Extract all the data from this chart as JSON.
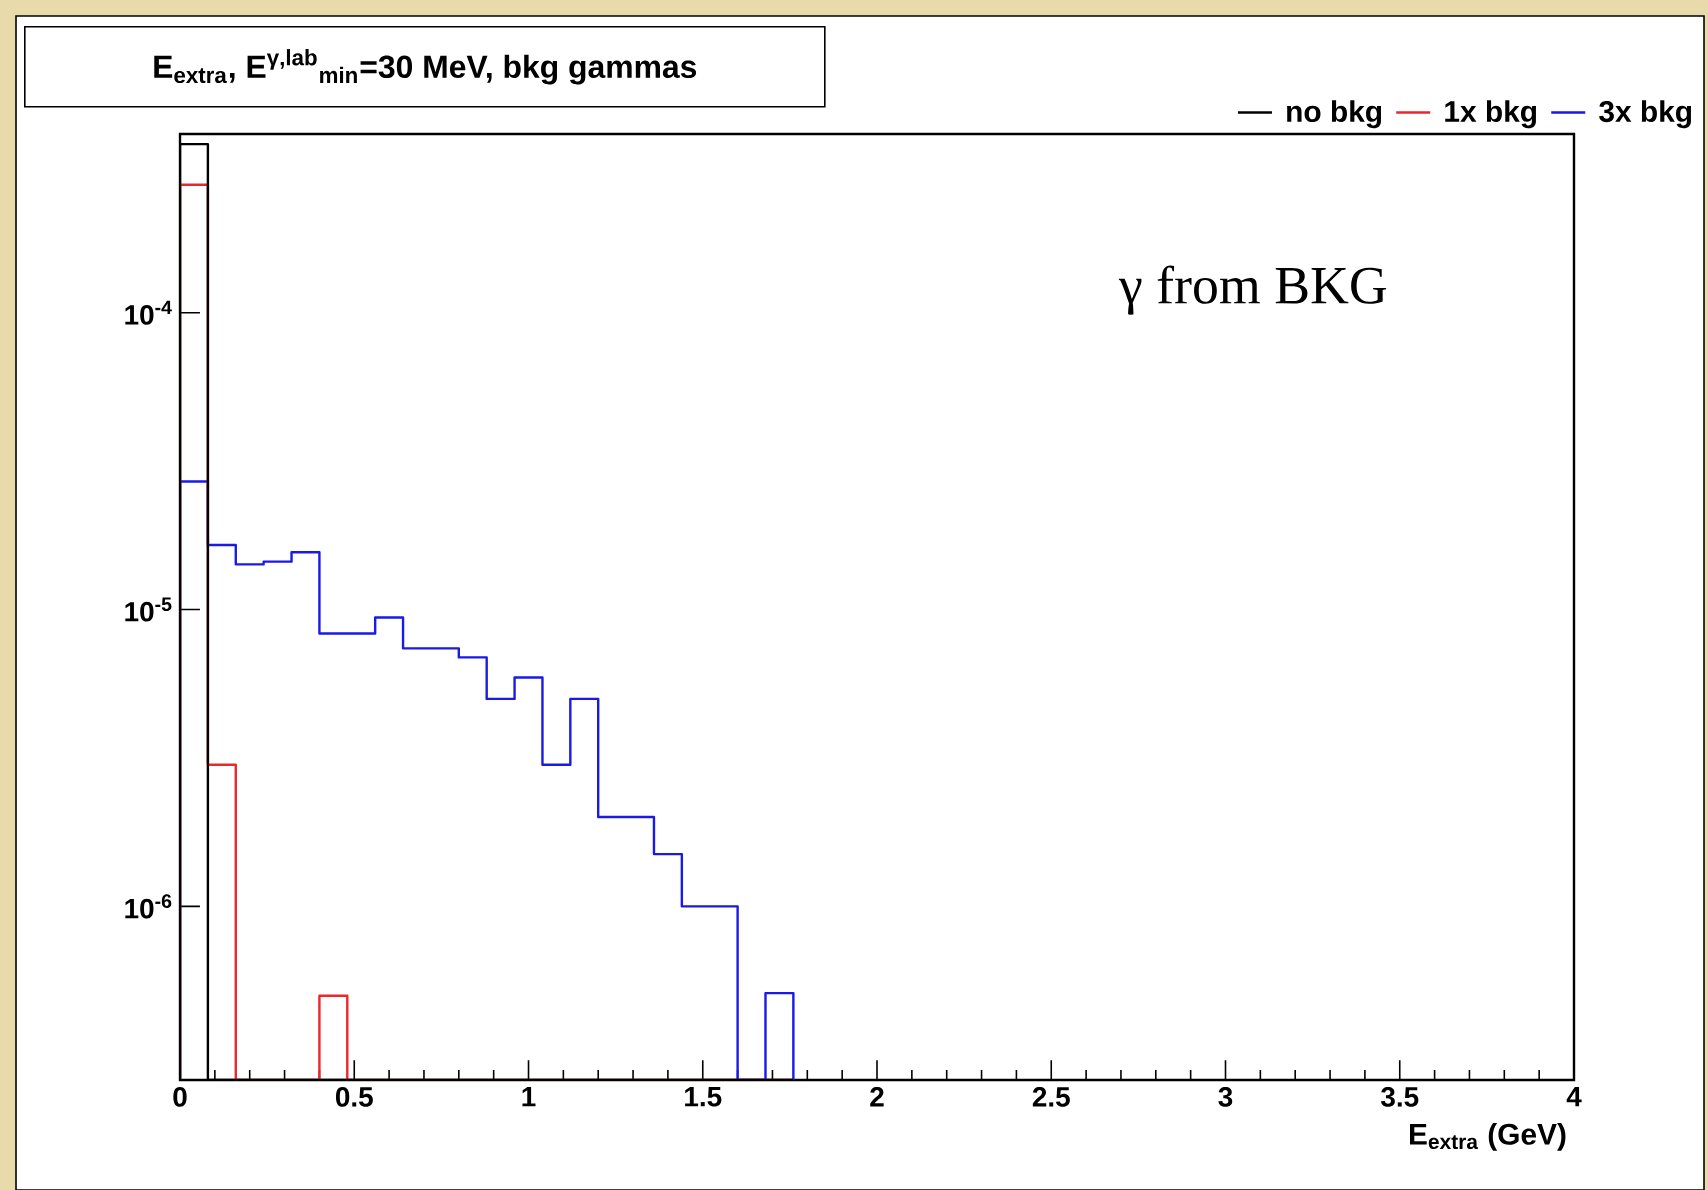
{
  "chart_data": {
    "type": "histogram",
    "title": "E$_{extra}$, E$^{γ,lab}$$_{min}$=30 MeV, bkg gammas",
    "xlabel": "E$_{extra}$ (GeV)",
    "annotations": [
      "γ from BKG"
    ],
    "bins": [
      0,
      0.08,
      0.16,
      0.24,
      0.32,
      0.4,
      0.48,
      0.56,
      0.64,
      0.72,
      0.8,
      0.88,
      0.96,
      1.04,
      1.12,
      1.2,
      1.28,
      1.36,
      1.44,
      1.52,
      1.6,
      1.68,
      1.76
    ],
    "series": [
      {
        "name": "no bkg",
        "color": "#000000",
        "values": [
          0.00037,
          null,
          null,
          null,
          null,
          null,
          null,
          null,
          null,
          null,
          null,
          null,
          null,
          null,
          null,
          null,
          null,
          null,
          null,
          null,
          null,
          null
        ]
      },
      {
        "name": "1x bkg",
        "color": "#e8282b",
        "values": [
          0.00027,
          3e-06,
          null,
          null,
          null,
          5e-07,
          null,
          null,
          null,
          null,
          null,
          null,
          null,
          null,
          null,
          null,
          null,
          null,
          null,
          null,
          null,
          null
        ]
      },
      {
        "name": "3x bkg",
        "color": "#1a1ae6",
        "values": [
          2.7e-05,
          1.65e-05,
          1.42e-05,
          1.45e-05,
          1.56e-05,
          8.3e-06,
          8.3e-06,
          9.4e-06,
          7.4e-06,
          7.4e-06,
          6.9e-06,
          5e-06,
          5.9e-06,
          3e-06,
          5e-06,
          2e-06,
          2e-06,
          1.5e-06,
          1e-06,
          1e-06,
          null,
          5.1e-07
        ]
      }
    ],
    "xlim": [
      0,
      4
    ],
    "xticks": [
      0,
      0.5,
      1,
      1.5,
      2,
      2.5,
      3,
      3.5,
      4
    ],
    "ylim": [
      2.6e-07,
      0.0004
    ],
    "yticks": [
      {
        "value": 1e-06,
        "label": "10$^{-6}$"
      },
      {
        "value": 1e-05,
        "label": "10$^{-5}$"
      },
      {
        "value": 0.0001,
        "label": "10$^{-4}$"
      }
    ],
    "log": "y",
    "legend": "top right"
  }
}
